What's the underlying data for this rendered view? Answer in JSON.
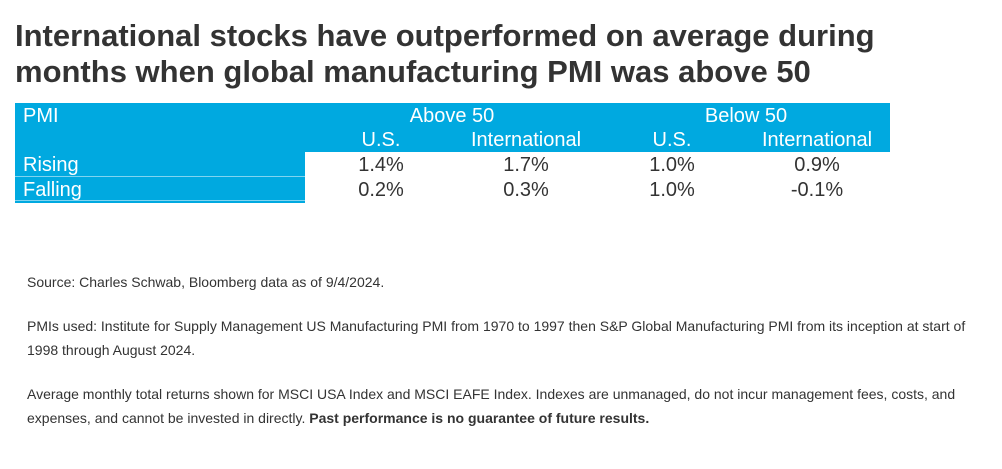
{
  "title": "International stocks have outperformed on average during months when global manufacturing PMI was above 50",
  "chart_data": {
    "type": "table",
    "row_header_label": "PMI",
    "groups": [
      {
        "label": "Above 50",
        "columns": [
          "U.S.",
          "International"
        ]
      },
      {
        "label": "Below 50",
        "columns": [
          "U.S.",
          "International"
        ]
      }
    ],
    "rows": [
      {
        "label": "Rising",
        "values": [
          "1.4%",
          "1.7%",
          "1.0%",
          "0.9%"
        ]
      },
      {
        "label": "Falling",
        "values": [
          "0.2%",
          "0.3%",
          "1.0%",
          "-0.1%"
        ]
      }
    ]
  },
  "colors": {
    "header_band": "#00a9e0",
    "text": "#333333",
    "header_text": "#ffffff"
  },
  "footnotes": {
    "source": "Source: Charles Schwab, Bloomberg data as of 9/4/2024.",
    "pmis_used": "PMIs used: Institute for Supply Management US Manufacturing PMI from 1970 to 1997 then S&P Global Manufacturing PMI from its inception at start of 1998 through August 2024.",
    "returns_note": "Average monthly total returns shown for MSCI USA Index and MSCI EAFE Index. Indexes are unmanaged, do not incur management fees, costs, and expenses, and cannot be invested in directly.",
    "disclaimer": "Past performance is no guarantee of future results."
  }
}
